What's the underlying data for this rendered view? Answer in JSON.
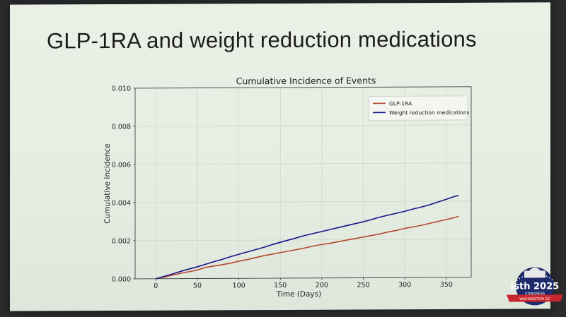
{
  "slide": {
    "title": "GLP-1RA and weight reduction medications"
  },
  "chart_data": {
    "type": "line",
    "title": "Cumulative Incidence of Events",
    "xlabel": "Time (Days)",
    "ylabel": "Cumulative Incidence",
    "xlim": [
      -25,
      380
    ],
    "ylim": [
      0,
      0.01
    ],
    "xticks": [
      0,
      50,
      100,
      150,
      200,
      250,
      300,
      350
    ],
    "yticks": [
      0.0,
      0.002,
      0.004,
      0.006,
      0.008,
      0.01
    ],
    "ytick_labels": [
      "0.000",
      "0.002",
      "0.004",
      "0.006",
      "0.008",
      "0.010"
    ],
    "grid": true,
    "legend_position": "top-right",
    "series": [
      {
        "name": "GLP-1RA",
        "color": "#b5482f",
        "x": [
          0,
          10,
          20,
          30,
          40,
          50,
          60,
          70,
          80,
          90,
          100,
          110,
          120,
          130,
          140,
          150,
          160,
          170,
          180,
          190,
          200,
          210,
          220,
          230,
          240,
          250,
          260,
          270,
          280,
          290,
          300,
          310,
          320,
          330,
          340,
          350,
          360,
          365
        ],
        "values": [
          0,
          8e-05,
          0.00018,
          0.00028,
          0.00036,
          0.00045,
          0.00058,
          0.00065,
          0.00072,
          0.0008,
          0.0009,
          0.00098,
          0.00108,
          0.00118,
          0.00126,
          0.00134,
          0.00142,
          0.0015,
          0.00158,
          0.00168,
          0.00176,
          0.00182,
          0.0019,
          0.00198,
          0.00206,
          0.00214,
          0.00222,
          0.0023,
          0.0024,
          0.00248,
          0.00258,
          0.00266,
          0.00274,
          0.00284,
          0.00294,
          0.00304,
          0.00314,
          0.0032
        ]
      },
      {
        "name": "Weight reduction medications",
        "color": "#14158c",
        "x": [
          0,
          10,
          20,
          30,
          40,
          50,
          60,
          70,
          80,
          90,
          100,
          110,
          120,
          130,
          140,
          150,
          160,
          170,
          180,
          190,
          200,
          210,
          220,
          230,
          240,
          250,
          260,
          270,
          280,
          290,
          300,
          310,
          320,
          330,
          340,
          350,
          360,
          365
        ],
        "values": [
          0,
          0.00012,
          0.00025,
          0.00038,
          0.0005,
          0.00062,
          0.00075,
          0.00088,
          0.001,
          0.00114,
          0.00126,
          0.00138,
          0.0015,
          0.00162,
          0.00176,
          0.00188,
          0.002,
          0.00212,
          0.00224,
          0.00234,
          0.00244,
          0.00254,
          0.00264,
          0.00274,
          0.00284,
          0.00294,
          0.00306,
          0.00318,
          0.00328,
          0.00338,
          0.00348,
          0.0036,
          0.0037,
          0.00382,
          0.00396,
          0.0041,
          0.00425,
          0.0043
        ]
      }
    ]
  },
  "logo": {
    "main": "isth 2025",
    "sub": "CONGRESS",
    "banner": "WASHINGTON DC"
  }
}
